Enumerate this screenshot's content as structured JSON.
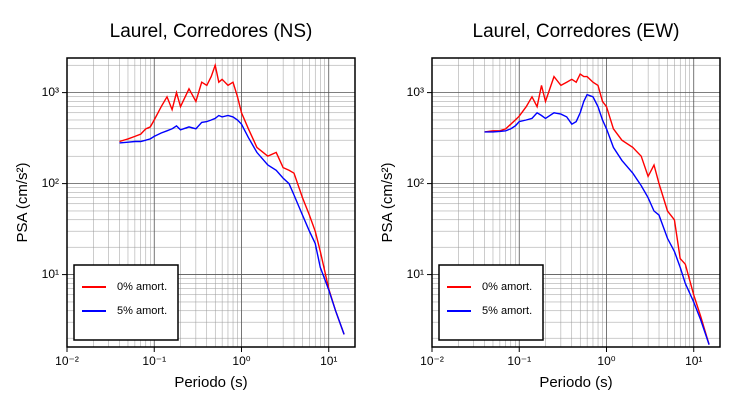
{
  "chart_data": [
    {
      "type": "line",
      "title": "Laurel, Corredores (NS)",
      "x_label": "Periodo (s)",
      "y_label": "PSA (cm/s²)",
      "x": [
        0.04,
        0.05,
        0.06,
        0.07,
        0.08,
        0.09,
        0.1,
        0.12,
        0.14,
        0.16,
        0.18,
        0.2,
        0.25,
        0.3,
        0.35,
        0.4,
        0.45,
        0.5,
        0.55,
        0.6,
        0.7,
        0.8,
        0.9,
        1.0,
        1.2,
        1.5,
        2,
        2.5,
        3,
        3.5,
        4,
        5,
        6,
        7,
        8,
        10,
        12,
        15
      ],
      "series": [
        {
          "name": "0% amort.",
          "color": "#ff0000",
          "values": [
            290,
            310,
            330,
            350,
            400,
            420,
            500,
            700,
            900,
            650,
            1000,
            700,
            1100,
            800,
            1300,
            1200,
            1500,
            2000,
            1300,
            1400,
            1200,
            1300,
            900,
            600,
            400,
            250,
            200,
            220,
            150,
            140,
            130,
            70,
            45,
            30,
            18,
            7,
            4,
            2.2
          ]
        },
        {
          "name": "5% amort.",
          "color": "#0000ff",
          "values": [
            280,
            285,
            290,
            290,
            300,
            310,
            330,
            360,
            380,
            400,
            430,
            390,
            420,
            400,
            470,
            480,
            500,
            520,
            560,
            540,
            560,
            540,
            500,
            450,
            320,
            220,
            160,
            140,
            115,
            100,
            75,
            45,
            30,
            22,
            12,
            6.8,
            4,
            2.2
          ]
        }
      ],
      "xlim": [
        0.01,
        20
      ],
      "ylim": [
        1.6,
        2400
      ],
      "log_x": true,
      "log_y": true,
      "grid": true,
      "legend": "lower left",
      "xticks": [
        {
          "value": 0.01,
          "label": "10⁻²"
        },
        {
          "value": 0.1,
          "label": "10⁻¹"
        },
        {
          "value": 1,
          "label": "10⁰"
        },
        {
          "value": 10,
          "label": "10¹"
        }
      ],
      "yticks": [
        {
          "value": 10,
          "label": "10¹"
        },
        {
          "value": 100,
          "label": "10²"
        },
        {
          "value": 1000,
          "label": "10³"
        }
      ]
    },
    {
      "type": "line",
      "title": "Laurel, Corredores (EW)",
      "x_label": "Periodo (s)",
      "y_label": "PSA (cm/s²)",
      "x": [
        0.04,
        0.05,
        0.06,
        0.07,
        0.08,
        0.09,
        0.1,
        0.12,
        0.14,
        0.16,
        0.18,
        0.2,
        0.25,
        0.3,
        0.35,
        0.4,
        0.45,
        0.5,
        0.55,
        0.6,
        0.7,
        0.8,
        0.9,
        1.0,
        1.2,
        1.5,
        2,
        2.5,
        3,
        3.5,
        4,
        5,
        6,
        7,
        8,
        10,
        12,
        15
      ],
      "series": [
        {
          "name": "0% amort.",
          "color": "#ff0000",
          "values": [
            370,
            380,
            380,
            400,
            450,
            500,
            550,
            700,
            900,
            700,
            1200,
            800,
            1500,
            1200,
            1300,
            1400,
            1300,
            1600,
            1500,
            1500,
            1300,
            1200,
            800,
            700,
            400,
            300,
            250,
            200,
            120,
            160,
            100,
            50,
            40,
            15,
            13,
            6,
            3.5,
            1.7
          ]
        },
        {
          "name": "5% amort.",
          "color": "#0000ff",
          "values": [
            370,
            370,
            375,
            380,
            400,
            430,
            480,
            500,
            520,
            600,
            560,
            520,
            600,
            580,
            540,
            450,
            480,
            600,
            800,
            950,
            900,
            700,
            500,
            400,
            250,
            180,
            130,
            95,
            70,
            50,
            45,
            25,
            18,
            12,
            8,
            5,
            3.2,
            1.7
          ]
        }
      ],
      "xlim": [
        0.01,
        20
      ],
      "ylim": [
        1.6,
        2400
      ],
      "log_x": true,
      "log_y": true,
      "grid": true,
      "legend": "lower left",
      "xticks": [
        {
          "value": 0.01,
          "label": "10⁻²"
        },
        {
          "value": 0.1,
          "label": "10⁻¹"
        },
        {
          "value": 1,
          "label": "10⁰"
        },
        {
          "value": 10,
          "label": "10¹"
        }
      ],
      "yticks": [
        {
          "value": 10,
          "label": "10¹"
        },
        {
          "value": 100,
          "label": "10²"
        },
        {
          "value": 1000,
          "label": "10³"
        }
      ]
    }
  ]
}
